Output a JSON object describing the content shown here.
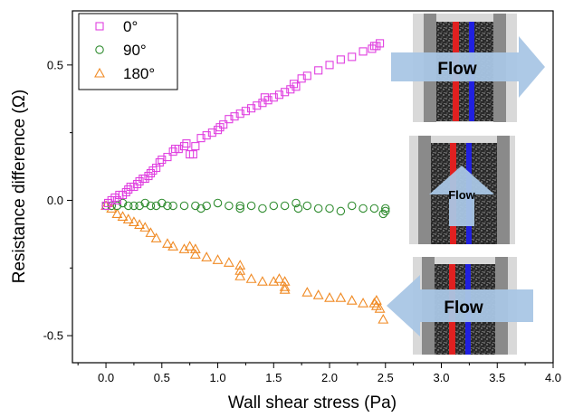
{
  "chart_data": {
    "type": "scatter",
    "xlabel": "Wall shear stress (Pa)",
    "ylabel": "Resistance difference (Ω)",
    "xlim": [
      -0.3,
      4.0
    ],
    "ylim": [
      -0.6,
      0.7
    ],
    "xticks": [
      0.0,
      0.5,
      1.0,
      1.5,
      2.0,
      2.5,
      3.0,
      3.5,
      4.0
    ],
    "xtick_labels": [
      "0.0",
      "0.5",
      "1.0",
      "1.5",
      "2.0",
      "2.5",
      "3.0",
      "3.5",
      "4.0"
    ],
    "yticks": [
      -0.5,
      0.0,
      0.5
    ],
    "ytick_labels": [
      "-0.5",
      "0.0",
      "0.5"
    ],
    "legend_position": "top-left",
    "grid": false,
    "series": [
      {
        "name": "0°",
        "marker": "square",
        "color": "#e040e0",
        "points": [
          [
            0.0,
            -0.02
          ],
          [
            0.02,
            -0.01
          ],
          [
            0.05,
            0.0
          ],
          [
            0.08,
            0.01
          ],
          [
            0.1,
            0.0
          ],
          [
            0.12,
            0.02
          ],
          [
            0.15,
            0.02
          ],
          [
            0.18,
            0.03
          ],
          [
            0.2,
            0.04
          ],
          [
            0.22,
            0.05
          ],
          [
            0.25,
            0.05
          ],
          [
            0.28,
            0.06
          ],
          [
            0.3,
            0.07
          ],
          [
            0.33,
            0.08
          ],
          [
            0.35,
            0.08
          ],
          [
            0.38,
            0.09
          ],
          [
            0.4,
            0.1
          ],
          [
            0.42,
            0.11
          ],
          [
            0.45,
            0.12
          ],
          [
            0.48,
            0.14
          ],
          [
            0.5,
            0.15
          ],
          [
            0.55,
            0.16
          ],
          [
            0.6,
            0.18
          ],
          [
            0.65,
            0.19
          ],
          [
            0.7,
            0.2
          ],
          [
            0.72,
            0.21
          ],
          [
            0.75,
            0.17
          ],
          [
            0.78,
            0.17
          ],
          [
            0.8,
            0.2
          ],
          [
            0.85,
            0.23
          ],
          [
            0.9,
            0.24
          ],
          [
            0.95,
            0.25
          ],
          [
            1.0,
            0.26
          ],
          [
            1.05,
            0.28
          ],
          [
            1.1,
            0.3
          ],
          [
            1.15,
            0.31
          ],
          [
            1.2,
            0.32
          ],
          [
            1.25,
            0.33
          ],
          [
            1.3,
            0.34
          ],
          [
            1.35,
            0.35
          ],
          [
            1.4,
            0.36
          ],
          [
            1.45,
            0.37
          ],
          [
            1.5,
            0.38
          ],
          [
            1.55,
            0.39
          ],
          [
            1.6,
            0.4
          ],
          [
            1.65,
            0.41
          ],
          [
            1.7,
            0.42
          ],
          [
            1.75,
            0.45
          ],
          [
            1.8,
            0.46
          ],
          [
            1.9,
            0.48
          ],
          [
            2.0,
            0.5
          ],
          [
            2.1,
            0.52
          ],
          [
            2.2,
            0.53
          ],
          [
            2.3,
            0.55
          ],
          [
            2.4,
            0.57
          ],
          [
            2.45,
            0.58
          ],
          [
            2.38,
            0.56
          ],
          [
            2.42,
            0.57
          ],
          [
            1.42,
            0.38
          ],
          [
            1.68,
            0.43
          ],
          [
            0.62,
            0.19
          ],
          [
            1.02,
            0.27
          ]
        ]
      },
      {
        "name": "90°",
        "marker": "circle",
        "color": "#2e8b2e",
        "points": [
          [
            0.0,
            -0.02
          ],
          [
            0.05,
            -0.02
          ],
          [
            0.1,
            -0.02
          ],
          [
            0.15,
            -0.01
          ],
          [
            0.2,
            -0.02
          ],
          [
            0.25,
            -0.02
          ],
          [
            0.3,
            -0.02
          ],
          [
            0.35,
            -0.01
          ],
          [
            0.4,
            -0.02
          ],
          [
            0.45,
            -0.02
          ],
          [
            0.5,
            -0.01
          ],
          [
            0.55,
            -0.02
          ],
          [
            0.6,
            -0.02
          ],
          [
            0.7,
            -0.02
          ],
          [
            0.8,
            -0.02
          ],
          [
            0.85,
            -0.03
          ],
          [
            0.9,
            -0.02
          ],
          [
            1.0,
            -0.01
          ],
          [
            1.1,
            -0.02
          ],
          [
            1.2,
            -0.03
          ],
          [
            1.2,
            -0.02
          ],
          [
            1.3,
            -0.02
          ],
          [
            1.4,
            -0.03
          ],
          [
            1.5,
            -0.02
          ],
          [
            1.6,
            -0.02
          ],
          [
            1.7,
            -0.01
          ],
          [
            1.72,
            -0.03
          ],
          [
            1.8,
            -0.02
          ],
          [
            1.9,
            -0.03
          ],
          [
            2.0,
            -0.03
          ],
          [
            2.1,
            -0.04
          ],
          [
            2.2,
            -0.02
          ],
          [
            2.3,
            -0.03
          ],
          [
            2.4,
            -0.03
          ],
          [
            2.5,
            -0.03
          ],
          [
            2.5,
            -0.04
          ],
          [
            2.48,
            -0.05
          ]
        ]
      },
      {
        "name": "180°",
        "marker": "triangle",
        "color": "#f08a24",
        "points": [
          [
            0.0,
            -0.02
          ],
          [
            0.05,
            -0.03
          ],
          [
            0.1,
            -0.05
          ],
          [
            0.15,
            -0.06
          ],
          [
            0.2,
            -0.07
          ],
          [
            0.25,
            -0.08
          ],
          [
            0.3,
            -0.09
          ],
          [
            0.35,
            -0.1
          ],
          [
            0.4,
            -0.12
          ],
          [
            0.45,
            -0.14
          ],
          [
            0.55,
            -0.16
          ],
          [
            0.6,
            -0.17
          ],
          [
            0.7,
            -0.18
          ],
          [
            0.75,
            -0.17
          ],
          [
            0.8,
            -0.18
          ],
          [
            0.8,
            -0.2
          ],
          [
            0.9,
            -0.21
          ],
          [
            1.0,
            -0.22
          ],
          [
            1.1,
            -0.23
          ],
          [
            1.2,
            -0.24
          ],
          [
            1.2,
            -0.26
          ],
          [
            1.2,
            -0.28
          ],
          [
            1.3,
            -0.29
          ],
          [
            1.4,
            -0.3
          ],
          [
            1.5,
            -0.3
          ],
          [
            1.55,
            -0.29
          ],
          [
            1.6,
            -0.3
          ],
          [
            1.6,
            -0.32
          ],
          [
            1.6,
            -0.33
          ],
          [
            1.8,
            -0.34
          ],
          [
            1.9,
            -0.35
          ],
          [
            2.0,
            -0.36
          ],
          [
            2.1,
            -0.36
          ],
          [
            2.2,
            -0.37
          ],
          [
            2.3,
            -0.38
          ],
          [
            2.4,
            -0.38
          ],
          [
            2.42,
            -0.37
          ],
          [
            2.45,
            -0.4
          ],
          [
            2.48,
            -0.44
          ],
          [
            2.42,
            -0.39
          ]
        ]
      }
    ],
    "annotations": [
      "Flow",
      "Flow",
      "Flow"
    ]
  }
}
